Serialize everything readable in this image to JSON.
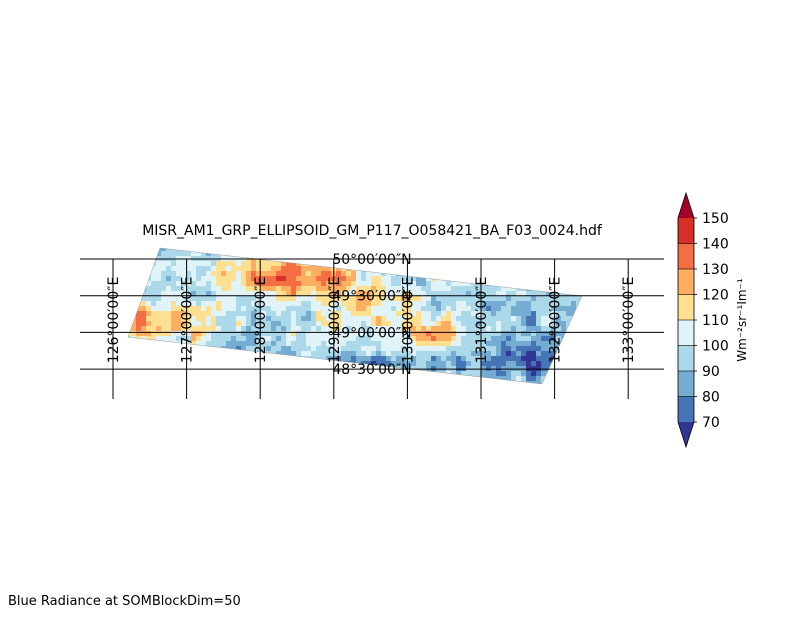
{
  "chart_data": {
    "type": "heatmap",
    "title": "MISR_AM1_GRP_ELLIPSOID_GM_P117_O058421_BA_F03_0024.hdf",
    "caption": "Blue Radiance at SOMBlockDim=50",
    "projection": "map",
    "lon_labels": [
      "126°00′00″E",
      "127°00′00″E",
      "128°00′00″E",
      "129°00′00″E",
      "130°00′00″E",
      "131°00′00″E",
      "132°00′00″E",
      "133°00′00″E"
    ],
    "lat_labels": [
      "50°00′00″N",
      "49°30′00″N",
      "49°00′00″N",
      "48°30′00″N"
    ],
    "lon_values": [
      126,
      127,
      128,
      129,
      130,
      131,
      132,
      133
    ],
    "lat_values": [
      50.0,
      49.5,
      49.0,
      48.5
    ],
    "colorbar": {
      "label": "Wm⁻²sr⁻¹Im⁻¹",
      "ticks": [
        "70",
        "80",
        "90",
        "100",
        "110",
        "120",
        "130",
        "140",
        "150"
      ],
      "levels": [
        70,
        80,
        90,
        100,
        110,
        120,
        130,
        140,
        150
      ],
      "extend": "both",
      "colors": [
        "#313695",
        "#4575b4",
        "#74add1",
        "#abd9e9",
        "#e0f3f8",
        "#fee090",
        "#fdae61",
        "#f46d43",
        "#d73027",
        "#a50026"
      ]
    },
    "field_description": "Swath of radiance values ranging roughly 70–150; high (red/orange) values across the northwest and central part, low (blue) values in the east and southeast."
  }
}
